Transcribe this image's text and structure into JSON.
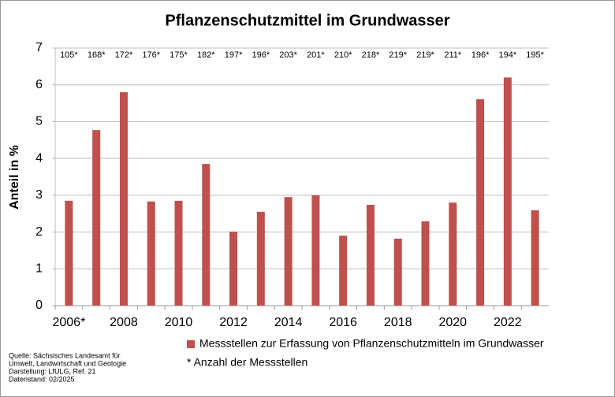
{
  "chart_data": {
    "type": "bar",
    "title": "Pflanzenschutzmittel im Grundwasser",
    "y_label": "Anteil in %",
    "categories": [
      "2006*",
      null,
      "2008",
      null,
      "2010",
      null,
      "2012",
      null,
      "2014",
      null,
      "2016",
      null,
      "2018",
      null,
      "2020",
      null,
      "2022",
      null
    ],
    "series": [
      {
        "name": "Messstellen zur Erfassung von Pflanzenschutzmitteln im Grundwasser",
        "color": "#c0504d",
        "values": [
          2.85,
          4.77,
          5.8,
          2.83,
          2.85,
          3.85,
          2.01,
          2.55,
          2.95,
          3.0,
          1.9,
          2.74,
          1.82,
          2.29,
          2.8,
          5.61,
          6.2,
          2.59
        ]
      }
    ],
    "annotations": [
      "105*",
      "168*",
      "172*",
      "176*",
      "175*",
      "182*",
      "197*",
      "196*",
      "203*",
      "201*",
      "210*",
      "218*",
      "219*",
      "219*",
      "211*",
      "196*",
      "194*",
      "195*"
    ],
    "note": "* Anzahl der Messstellen",
    "source": [
      "Quelle: Sächsisches Landesamt für",
      "Umwelt, Landwirtschaft und Geologie",
      "Darstellung: LfULG, Ref. 21",
      "Datenstand: 02/2025"
    ],
    "ylim": [
      0,
      7
    ],
    "yticks": [
      0,
      1,
      2,
      3,
      4,
      5,
      6,
      7
    ],
    "grid": true
  }
}
